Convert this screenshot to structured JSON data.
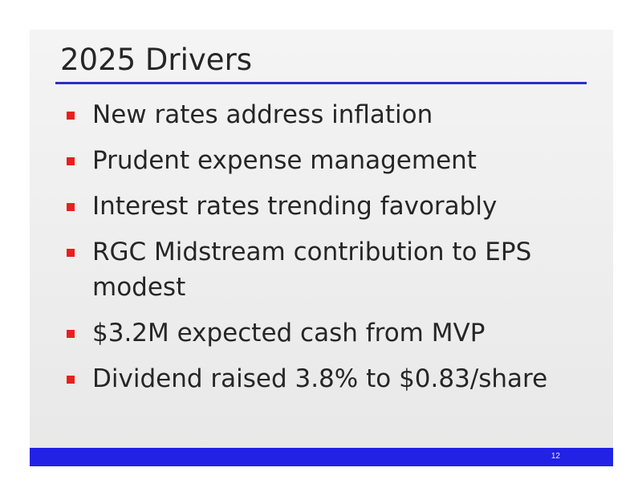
{
  "slide": {
    "title": "2025 Drivers",
    "bullets": [
      "New rates address inflation",
      "Prudent expense management",
      "Interest rates trending favorably",
      "RGC Midstream contribution to EPS modest",
      "$3.2M expected cash from MVP",
      "Dividend raised 3.8% to $0.83/share"
    ],
    "page_number": "12"
  },
  "colors": {
    "title_rule": "#2b2fc7",
    "bullet_marker": "#e8201c",
    "footer_bar": "#2222e6",
    "text": "#262626"
  },
  "icons": {
    "bullet_marker": "red-square-bullet-icon"
  }
}
